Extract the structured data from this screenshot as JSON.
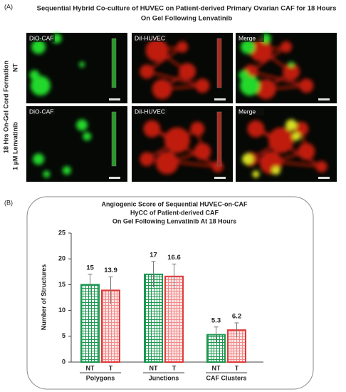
{
  "figure": {
    "panel_a": {
      "label": "(A)",
      "title": [
        "Sequential Hybrid Co-culture of HUVEC on Patient-derived Primary Ovarian CAF for 18 Hours",
        "On Gel Following Lenvatinib"
      ],
      "row_group_label": "18 Hrs On-Gel Cord Formation",
      "rows": [
        "NT",
        "1 µM Lenvatinib"
      ],
      "columns": [
        "DiO-CAF",
        "DiI-HUVEC",
        "Merge"
      ]
    },
    "panel_b_label": "(B)"
  },
  "chart_data": {
    "type": "bar",
    "title": [
      "Angiogenic Score of Sequential HUVEC-on-CAF",
      "HyCC of Patient-derived CAF",
      "On Gel Following Lenvatinib At 18 Hours"
    ],
    "y_label": "Number of Structures",
    "categories": [
      "Polygons",
      "Junctions",
      "CAF Clusters"
    ],
    "series": [
      {
        "name": "NT",
        "color": "#1a9850",
        "values": [
          15,
          17,
          5.3
        ],
        "errors": [
          2,
          2.5,
          1.5
        ]
      },
      {
        "name": "T",
        "color": "#e03c3c",
        "values": [
          13.9,
          16.6,
          6.2
        ],
        "errors": [
          2.6,
          2.4,
          1.4
        ]
      }
    ],
    "ylim": [
      0,
      25
    ],
    "yticks": [
      0,
      5,
      10,
      15,
      20,
      25
    ]
  }
}
